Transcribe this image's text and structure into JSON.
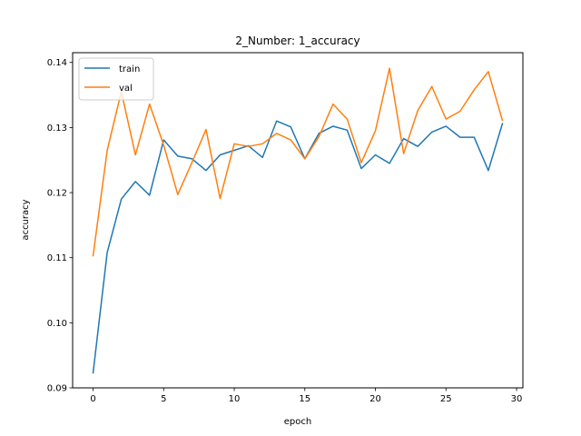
{
  "chart_data": {
    "type": "line",
    "title": "2_Number: 1_accuracy",
    "xlabel": "epoch",
    "ylabel": "accuracy",
    "xlim": [
      -1.45,
      30.45
    ],
    "ylim": [
      0.09,
      0.1415
    ],
    "xticks": [
      0,
      5,
      10,
      15,
      20,
      25,
      30
    ],
    "yticks": [
      0.09,
      0.1,
      0.11,
      0.12,
      0.13,
      0.14
    ],
    "ytick_labels": [
      "0.09",
      "0.10",
      "0.11",
      "0.12",
      "0.13",
      "0.14"
    ],
    "grid": false,
    "legend_position": "upper left",
    "x": [
      0,
      1,
      2,
      3,
      4,
      5,
      6,
      7,
      8,
      9,
      10,
      11,
      12,
      13,
      14,
      15,
      16,
      17,
      18,
      19,
      20,
      21,
      22,
      23,
      24,
      25,
      26,
      27,
      28,
      29
    ],
    "series": [
      {
        "name": "train",
        "color": "#1f77b4",
        "values": [
          0.0923,
          0.1108,
          0.119,
          0.1217,
          0.1196,
          0.1281,
          0.1256,
          0.1252,
          0.1234,
          0.1258,
          0.1265,
          0.1272,
          0.1254,
          0.131,
          0.1301,
          0.1252,
          0.1291,
          0.1302,
          0.1296,
          0.1237,
          0.1258,
          0.1245,
          0.1283,
          0.1271,
          0.1293,
          0.1302,
          0.1285,
          0.1285,
          0.1234,
          0.1306
        ]
      },
      {
        "name": "val",
        "color": "#ff7f0e",
        "values": [
          0.1103,
          0.1265,
          0.1355,
          0.1258,
          0.1336,
          0.1273,
          0.1197,
          0.1246,
          0.1297,
          0.1191,
          0.1275,
          0.1271,
          0.1275,
          0.1291,
          0.1281,
          0.1252,
          0.1286,
          0.1336,
          0.1313,
          0.1246,
          0.1295,
          0.1391,
          0.126,
          0.1326,
          0.1363,
          0.1313,
          0.1325,
          0.1358,
          0.1386,
          0.1311
        ]
      }
    ]
  }
}
